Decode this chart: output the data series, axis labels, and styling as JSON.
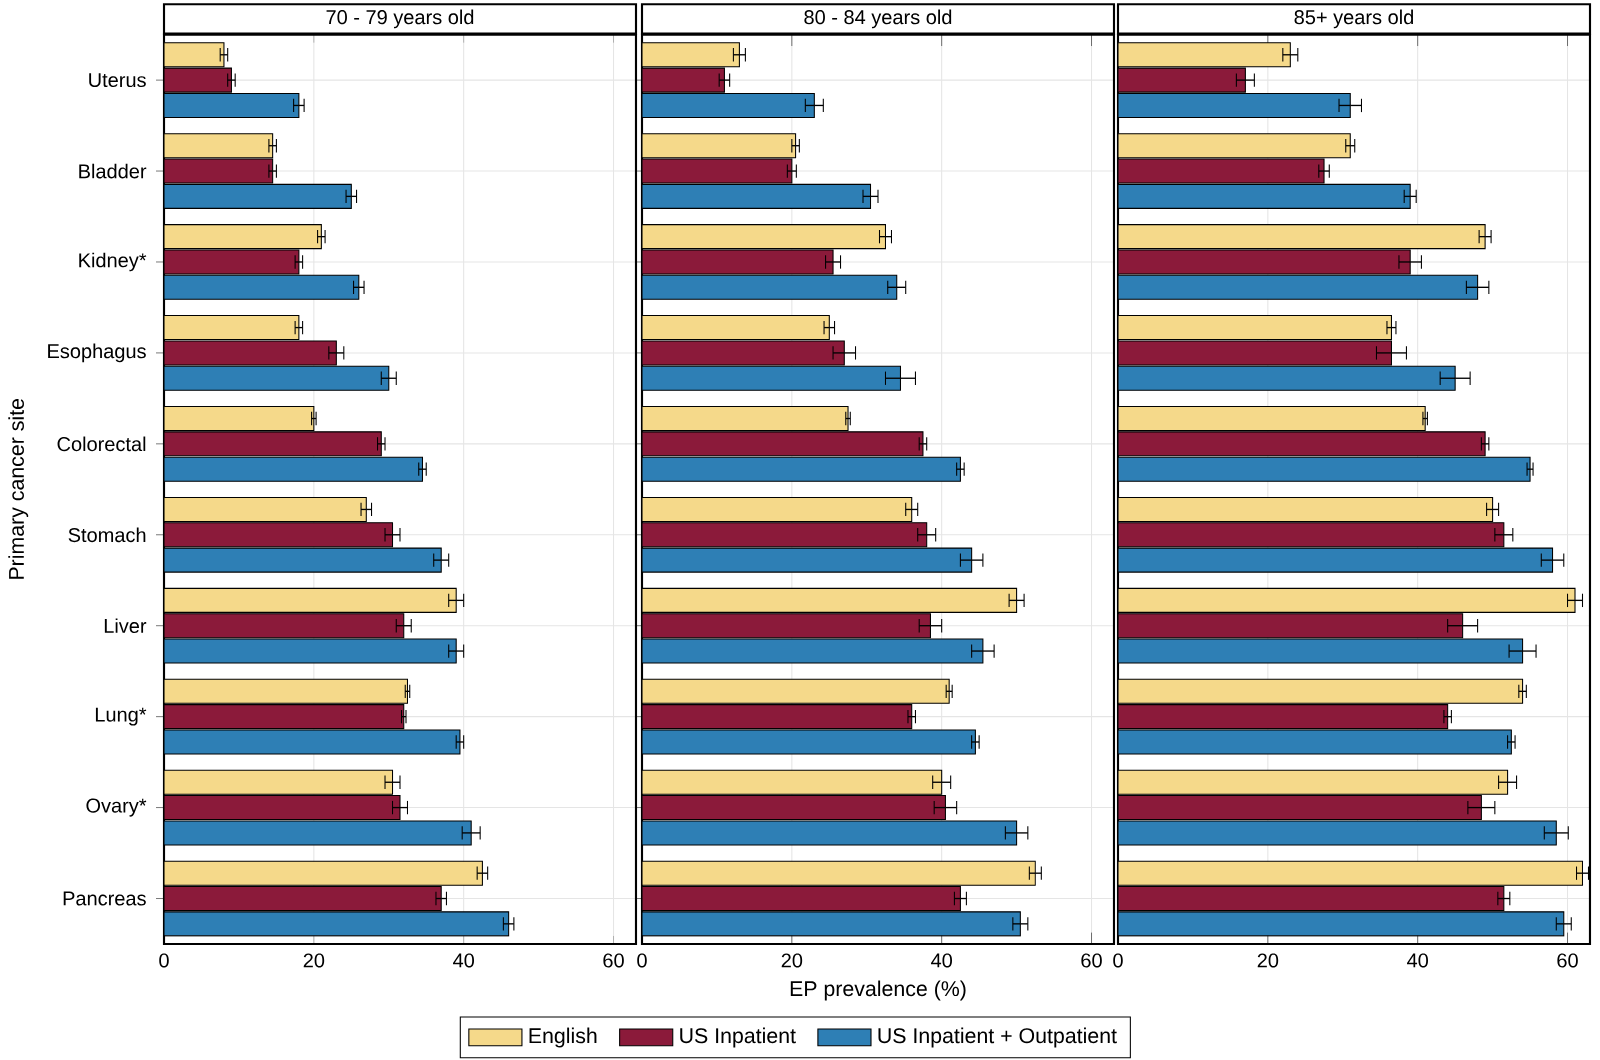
{
  "chart_data": [
    {
      "type": "bar",
      "orientation": "horizontal",
      "title": "70 - 79 years old",
      "ylabel": "Primary cancer site",
      "categories": [
        "Uterus",
        "Bladder",
        "Kidney*",
        "Esophagus",
        "Colorectal",
        "Stomach",
        "Liver",
        "Lung*",
        "Ovary*",
        "Pancreas"
      ],
      "series": [
        {
          "color": "#f5d98a",
          "values": [
            8,
            14.5,
            21,
            18,
            20,
            27,
            39,
            32.5,
            30.5,
            42.5
          ],
          "errors": [
            0.5,
            0.5,
            0.5,
            0.5,
            0.3,
            0.7,
            1,
            0.3,
            1,
            0.7
          ]
        },
        {
          "color": "#8b1a3a",
          "values": [
            9,
            14.5,
            18,
            23,
            29,
            30.5,
            32,
            32,
            31.5,
            37
          ],
          "errors": [
            0.5,
            0.5,
            0.5,
            1,
            0.5,
            1,
            1,
            0.3,
            1,
            0.7
          ]
        },
        {
          "color": "#2e7fb5",
          "values": [
            18,
            25,
            26,
            30,
            34.5,
            37,
            39,
            39.5,
            41,
            46
          ],
          "errors": [
            0.7,
            0.7,
            0.7,
            1,
            0.5,
            1,
            1,
            0.5,
            1.2,
            0.7
          ]
        }
      ],
      "xlim": [
        0,
        63
      ],
      "xticks": [
        0,
        20,
        40,
        60
      ],
      "grid": true,
      "legend": false
    },
    {
      "type": "bar",
      "orientation": "horizontal",
      "title": "80 - 84 years old",
      "xlabel": "EP prevalence (%)",
      "categories": [
        null,
        null,
        null,
        null,
        null,
        null,
        null,
        null,
        null,
        null
      ],
      "series": [
        {
          "name": "English",
          "color": "#f5d98a",
          "values": [
            13,
            20.5,
            32.5,
            25,
            27.5,
            36,
            50,
            41,
            40,
            52.5
          ],
          "errors": [
            0.8,
            0.5,
            0.8,
            0.7,
            0.3,
            0.8,
            1,
            0.4,
            1.2,
            0.8
          ]
        },
        {
          "name": "US Inpatient",
          "color": "#8b1a3a",
          "values": [
            11,
            20,
            25.5,
            27,
            37.5,
            38,
            38.5,
            36,
            40.5,
            42.5
          ],
          "errors": [
            0.7,
            0.6,
            1,
            1.5,
            0.5,
            1.2,
            1.5,
            0.5,
            1.5,
            0.8
          ]
        },
        {
          "name": "US Inpatient + Outpatient",
          "color": "#2e7fb5",
          "values": [
            23,
            30.5,
            34,
            34.5,
            42.5,
            44,
            45.5,
            44.5,
            50,
            50.5
          ],
          "errors": [
            1.2,
            1,
            1.2,
            2,
            0.5,
            1.5,
            1.5,
            0.5,
            1.5,
            1
          ]
        }
      ],
      "xlim": [
        0,
        63
      ],
      "xticks": [
        0,
        20,
        40,
        60
      ],
      "grid": true,
      "legend": "bottom",
      "tick_labels": "x"
    },
    {
      "type": "bar",
      "orientation": "horizontal",
      "title": "85+ years old",
      "categories": [
        null,
        null,
        null,
        null,
        null,
        null,
        null,
        null,
        null,
        null
      ],
      "series": [
        {
          "color": "#f5d98a",
          "values": [
            23,
            31,
            49,
            36.5,
            41,
            50,
            61,
            54,
            52,
            62
          ],
          "errors": [
            1,
            0.6,
            0.8,
            0.6,
            0.3,
            0.8,
            1,
            0.5,
            1.2,
            0.8
          ]
        },
        {
          "color": "#8b1a3a",
          "values": [
            17,
            27.5,
            39,
            36.5,
            49,
            51.5,
            46,
            44,
            48.5,
            51.5
          ],
          "errors": [
            1.2,
            0.7,
            1.5,
            2,
            0.5,
            1.2,
            2,
            0.5,
            1.8,
            0.8
          ]
        },
        {
          "color": "#2e7fb5",
          "values": [
            31,
            39,
            48,
            45,
            55,
            58,
            54,
            52.5,
            58.5,
            59.5
          ],
          "errors": [
            1.5,
            0.8,
            1.5,
            2,
            0.4,
            1.5,
            1.8,
            0.5,
            1.6,
            1
          ]
        }
      ],
      "xlim": [
        0,
        63
      ],
      "xticks": [
        0,
        20,
        40,
        60
      ],
      "grid": true,
      "legend": false,
      "tick_labels": "x"
    }
  ]
}
